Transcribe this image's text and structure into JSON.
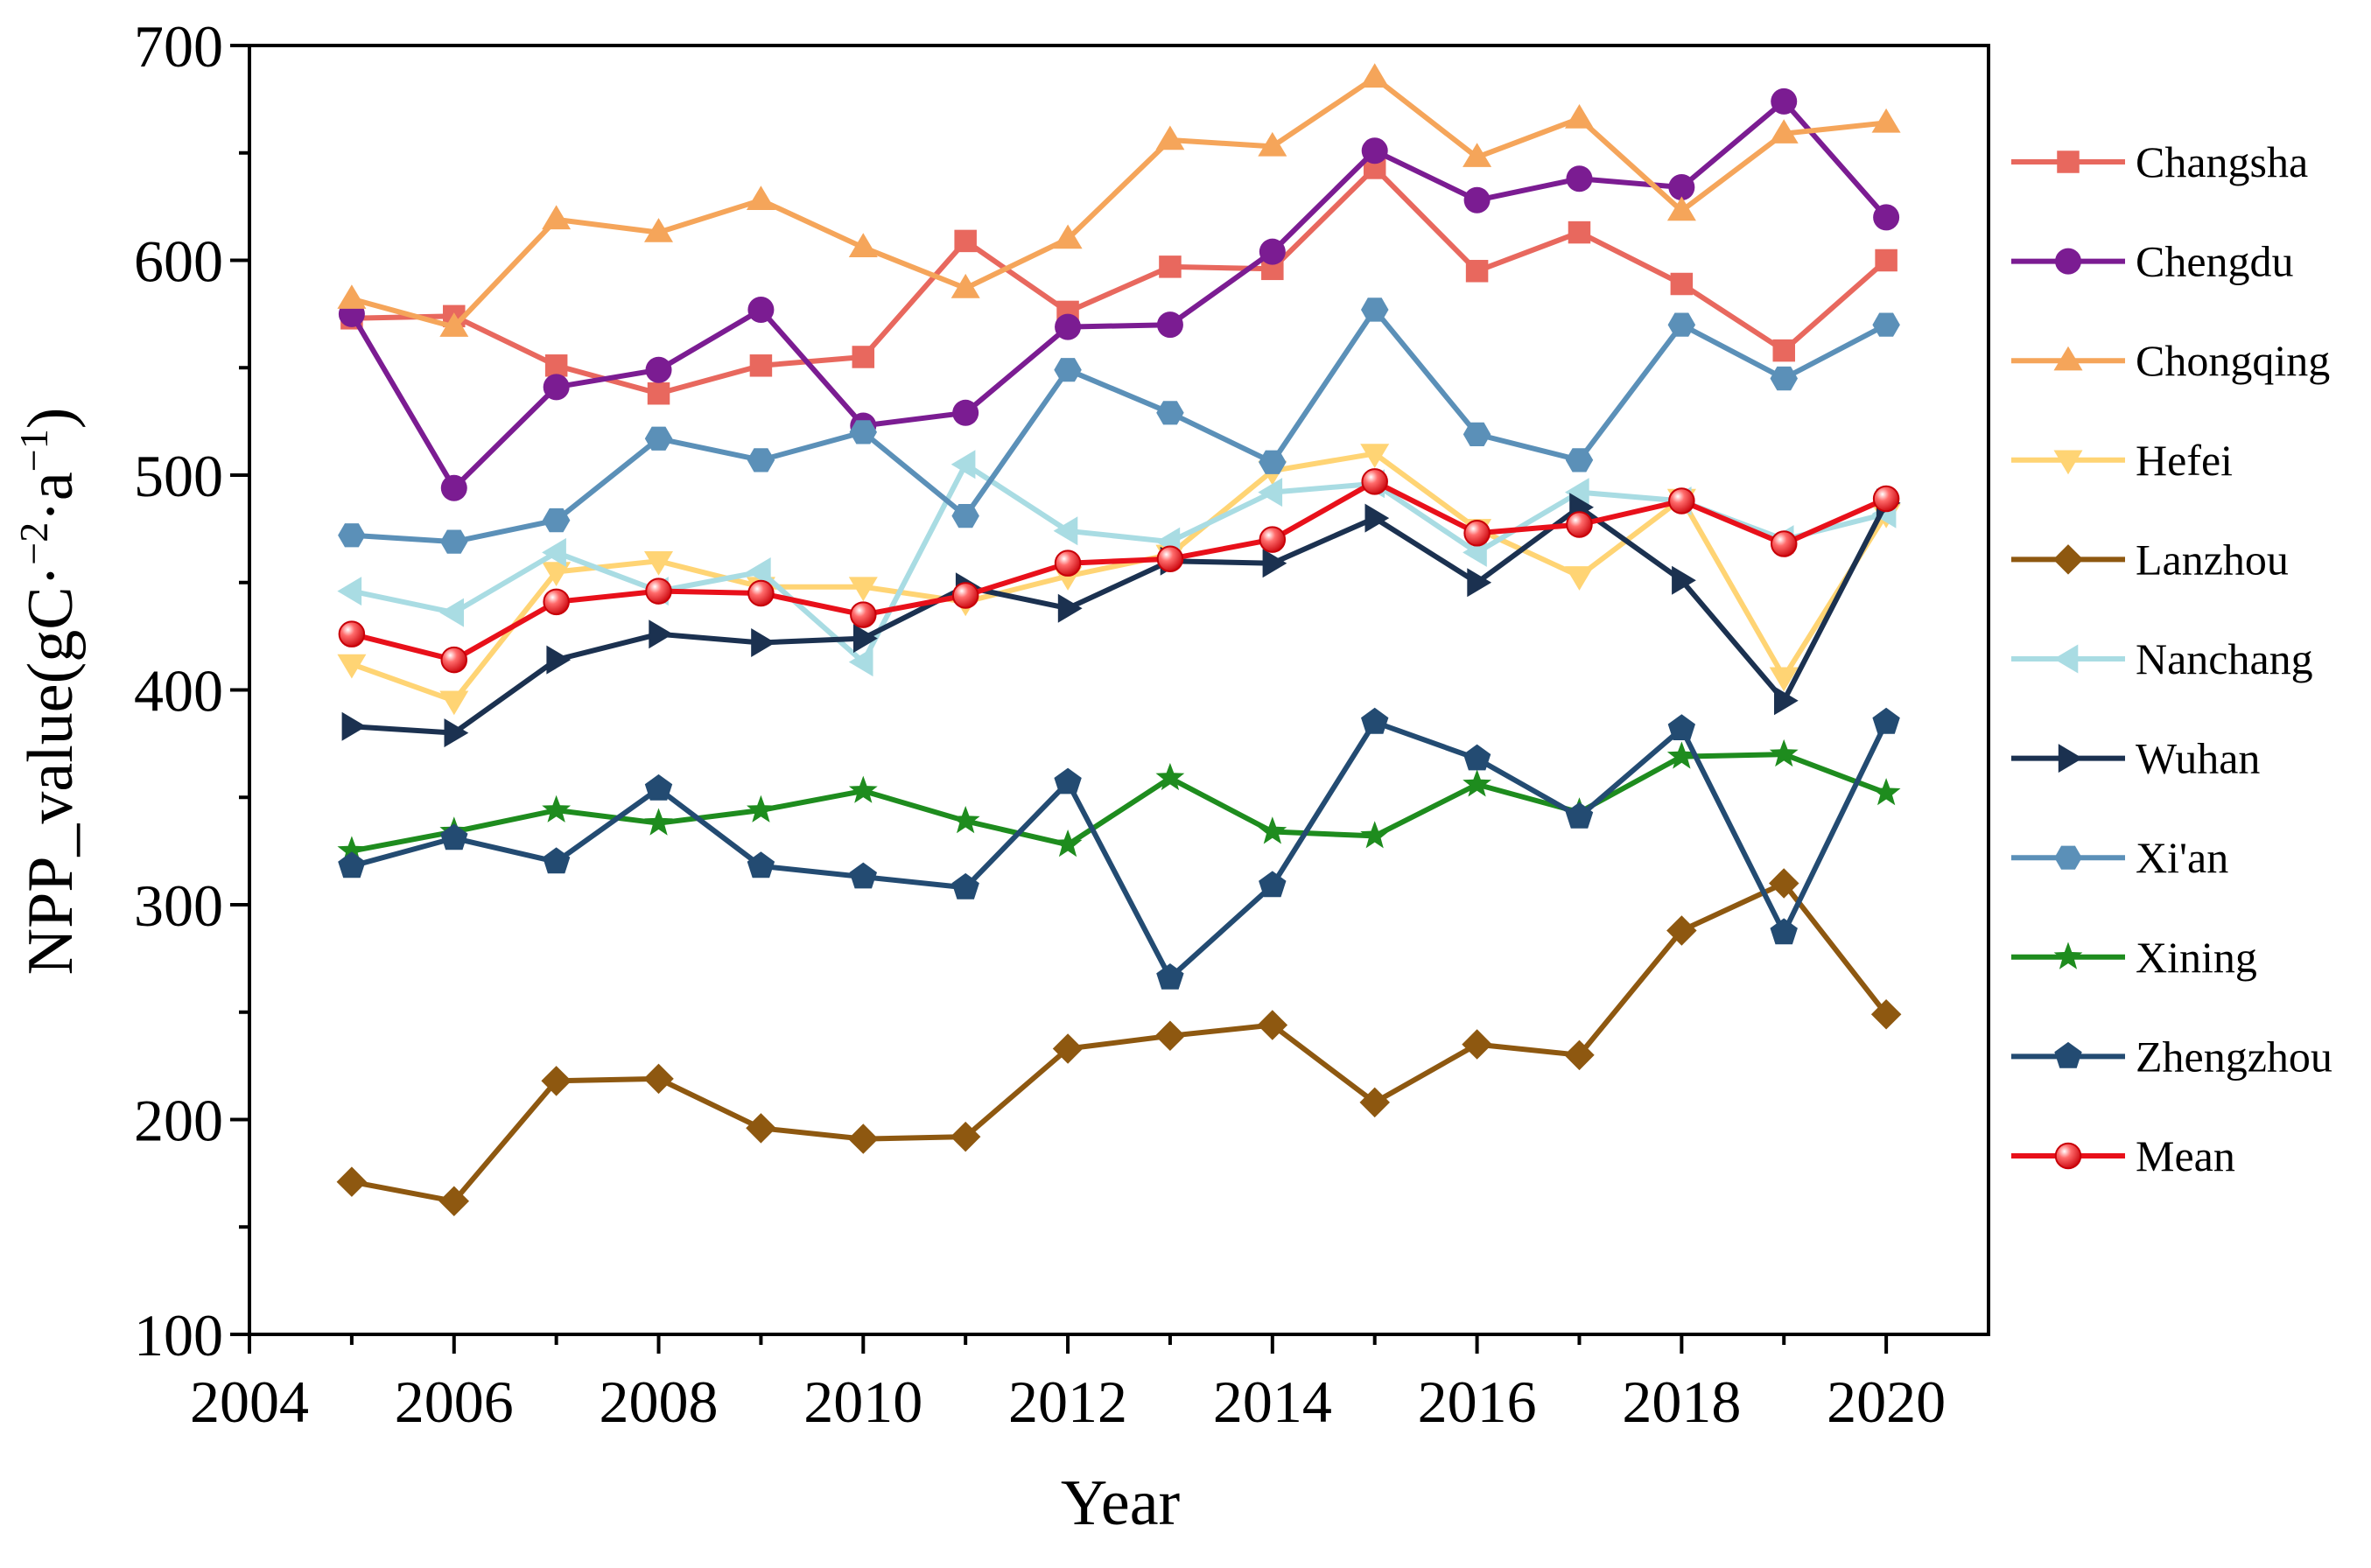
{
  "chart_data": {
    "type": "line",
    "title": "",
    "xlabel": "Year",
    "ylabel": {
      "prefix": "NPP_value(gC·",
      "exp1": "−2",
      "mid": "·a",
      "exp2": "−1",
      "suffix": ")"
    },
    "xlim": [
      2004,
      2021
    ],
    "ylim": [
      100,
      700
    ],
    "xticks": [
      2004,
      2006,
      2008,
      2010,
      2012,
      2014,
      2016,
      2018,
      2020
    ],
    "yticks": [
      100,
      200,
      300,
      400,
      500,
      600,
      700
    ],
    "x": [
      2005,
      2006,
      2007,
      2008,
      2009,
      2010,
      2011,
      2012,
      2013,
      2014,
      2015,
      2016,
      2017,
      2018,
      2019,
      2020
    ],
    "legend_position": "right",
    "series": [
      {
        "name": "Changsha",
        "color": "#E8685E",
        "marker": "square",
        "values": [
          573,
          574,
          551,
          538,
          551,
          555,
          609,
          576,
          597,
          596,
          643,
          595,
          613,
          589,
          558,
          600
        ]
      },
      {
        "name": "Chengdu",
        "color": "#7B1C92",
        "marker": "circle",
        "values": [
          575,
          494,
          541,
          549,
          577,
          523,
          529,
          569,
          570,
          604,
          651,
          628,
          638,
          634,
          674,
          620
        ]
      },
      {
        "name": "Chongqing",
        "color": "#F5A55A",
        "marker": "triangle-up",
        "values": [
          582,
          569,
          619,
          613,
          628,
          606,
          587,
          610,
          656,
          653,
          685,
          648,
          666,
          623,
          659,
          664
        ]
      },
      {
        "name": "Hefei",
        "color": "#FFD474",
        "marker": "triangle-down",
        "values": [
          412,
          395,
          455,
          460,
          448,
          448,
          441,
          453,
          463,
          502,
          510,
          475,
          453,
          489,
          406,
          482
        ]
      },
      {
        "name": "Lanzhou",
        "color": "#8E5810",
        "marker": "diamond",
        "values": [
          171,
          162,
          218,
          219,
          196,
          191,
          192,
          233,
          239,
          244,
          208,
          235,
          230,
          288,
          310,
          249
        ]
      },
      {
        "name": "Nanchang",
        "color": "#A9DCE3",
        "marker": "triangle-left",
        "values": [
          446,
          436,
          464,
          446,
          455,
          413,
          505,
          474,
          469,
          492,
          496,
          464,
          492,
          488,
          470,
          482
        ]
      },
      {
        "name": "Wuhan",
        "color": "#1B3150",
        "marker": "triangle-right",
        "values": [
          383,
          380,
          414,
          426,
          422,
          424,
          448,
          438,
          460,
          459,
          480,
          450,
          485,
          451,
          395,
          487
        ]
      },
      {
        "name": "Xi'an",
        "color": "#5B90B8",
        "marker": "hexagon",
        "values": [
          472,
          469,
          479,
          517,
          507,
          520,
          481,
          549,
          529,
          506,
          577,
          519,
          507,
          570,
          545,
          570
        ]
      },
      {
        "name": "Xining",
        "color": "#1E8C1E",
        "marker": "star",
        "values": [
          325,
          334,
          344,
          338,
          344,
          353,
          339,
          328,
          359,
          334,
          332,
          356,
          343,
          369,
          370,
          352
        ]
      },
      {
        "name": "Zhengzhou",
        "color": "#234B72",
        "marker": "pentagon",
        "values": [
          318,
          331,
          320,
          354,
          318,
          313,
          308,
          357,
          266,
          309,
          385,
          368,
          341,
          382,
          287,
          385
        ]
      },
      {
        "name": "Mean",
        "color": "#E8101A",
        "marker": "sphere",
        "values": [
          426,
          414,
          441,
          446,
          445,
          435,
          444,
          459,
          461,
          470,
          497,
          473,
          477,
          488,
          468,
          489
        ]
      }
    ]
  }
}
